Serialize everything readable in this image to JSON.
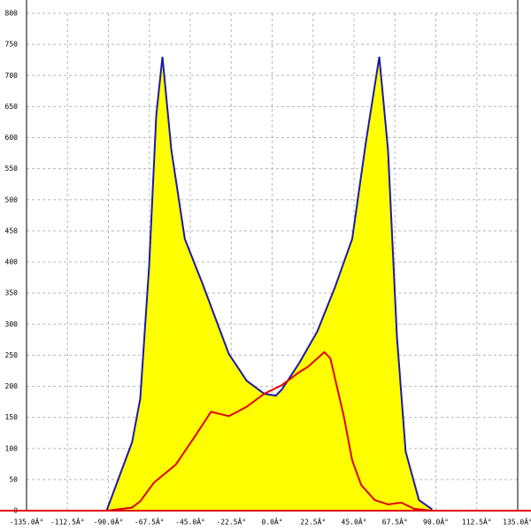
{
  "chart_data": {
    "type": "area-line",
    "series": [
      {
        "color": "#1a1aa8",
        "fill": "#ffff00",
        "x": [
          -91,
          -77,
          -72.5,
          -67.6,
          -63.7,
          -60.3,
          -55.4,
          -48,
          -38.4,
          -23.8,
          -14,
          -4.4,
          2,
          5.4,
          15,
          24.8,
          34.5,
          44,
          51.6,
          58.9,
          63.7,
          68.6,
          73.4,
          80.7,
          88
        ],
        "values": [
          0,
          110,
          180,
          394,
          636,
          730,
          580,
          437,
          366,
          252,
          209,
          188,
          185,
          195,
          238,
          288,
          359,
          437,
          594,
          730,
          580,
          280,
          95,
          17,
          2
        ]
      },
      {
        "color": "#e00000",
        "x": [
          -91,
          -77,
          -72.5,
          -65,
          -53,
          -43,
          -33.6,
          -23.8,
          -14,
          -4.4,
          5.4,
          15,
          19.5,
          28.7,
          32,
          39.4,
          44,
          49,
          56.4,
          63.7,
          71,
          78,
          88
        ],
        "values": [
          0,
          5,
          15,
          45,
          74,
          117,
          159,
          152,
          167,
          188,
          202,
          223,
          231,
          255,
          245,
          152,
          81,
          41,
          17,
          10,
          13,
          3,
          0
        ]
      }
    ],
    "xlim": [
      -135,
      135
    ],
    "ylim": [
      0,
      800
    ],
    "xticks": [
      {
        "value": -135,
        "label": "-135.0Â°"
      },
      {
        "value": -112.5,
        "label": "-112.5Â°"
      },
      {
        "value": -90,
        "label": "-90.0Â°"
      },
      {
        "value": -67.5,
        "label": "-67.5Â°"
      },
      {
        "value": -45,
        "label": "-45.0Â°"
      },
      {
        "value": -22.5,
        "label": "-22.5Â°"
      },
      {
        "value": 0,
        "label": "0.0Â°"
      },
      {
        "value": 22.5,
        "label": "22.5Â°"
      },
      {
        "value": 45,
        "label": "45.0Â°"
      },
      {
        "value": 67.5,
        "label": "67.5Â°"
      },
      {
        "value": 90,
        "label": "90.0Â°"
      },
      {
        "value": 112.5,
        "label": "112.5Â°"
      },
      {
        "value": 135,
        "label": "135.0Â°"
      }
    ],
    "yticks": [
      0,
      50,
      100,
      150,
      200,
      250,
      300,
      350,
      400,
      450,
      500,
      550,
      600,
      650,
      700,
      750,
      800
    ],
    "grid": true
  }
}
